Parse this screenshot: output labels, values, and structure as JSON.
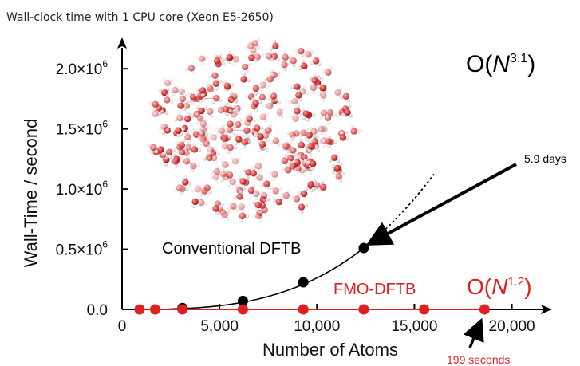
{
  "chart_data": {
    "type": "line",
    "title": "Wall-clock time with 1 CPU core (Xeon E5-2650)",
    "xlabel": "Number of Atoms",
    "ylabel": "Wall-Time / second",
    "xlim": [
      0,
      21000
    ],
    "ylim": [
      0,
      2200000
    ],
    "x_ticks": [
      {
        "value": 0,
        "label": "0"
      },
      {
        "value": 5000,
        "label": "5,000"
      },
      {
        "value": 10000,
        "label": "10,000"
      },
      {
        "value": 15000,
        "label": "15,000"
      },
      {
        "value": 20000,
        "label": "20,000"
      }
    ],
    "y_ticks": [
      {
        "value": 0,
        "label": "0.0",
        "exp": ""
      },
      {
        "value": 500000,
        "label": "0.5×10",
        "exp": "6"
      },
      {
        "value": 1000000,
        "label": "1.0×10",
        "exp": "6"
      },
      {
        "value": 1500000,
        "label": "1.5×10",
        "exp": "6"
      },
      {
        "value": 2000000,
        "label": "2.0×10",
        "exp": "6"
      }
    ],
    "series": [
      {
        "name": "Conventional DFTB",
        "color": "#000000",
        "x": [
          3100,
          6200,
          9300,
          12400
        ],
        "y": [
          12000,
          70000,
          225000,
          510000
        ],
        "fit_exponent": 3.1,
        "fit_xmax": 12400,
        "extrapolate_xmax": 16000
      },
      {
        "name": "FMO-DFTB",
        "color": "#e02020",
        "x": [
          900,
          1700,
          3100,
          6200,
          9300,
          12400,
          15500,
          18600
        ],
        "y": [
          0,
          0,
          0,
          0,
          0,
          0,
          0,
          0
        ]
      }
    ],
    "annotations": {
      "conventional_label": "Conventional DFTB",
      "fmo_label": "FMO-DFTB",
      "big_o_black_main": "O(",
      "big_o_black_n": "N",
      "big_o_black_exp": "3.1",
      "big_o_black_close": ")",
      "big_o_red_main": "O(",
      "big_o_red_n": "N",
      "big_o_red_exp": "1.2",
      "big_o_red_close": ")",
      "days_label": "5.9 days",
      "seconds_label": "199 seconds"
    },
    "colors": {
      "black": "#000000",
      "red": "#e02020",
      "axis": "#000000"
    },
    "inset_image": "water cluster molecule rendering"
  }
}
